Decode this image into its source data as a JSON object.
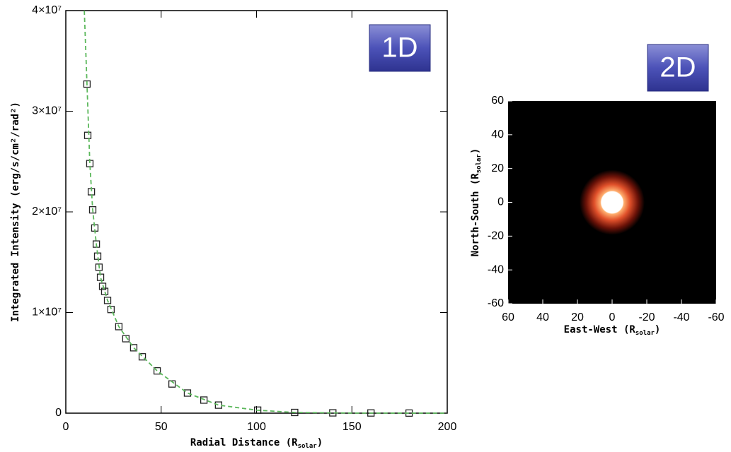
{
  "chart_data": [
    {
      "type": "scatter",
      "xlabel": [
        "Radial Distance (R",
        "solar",
        ")"
      ],
      "ylabel": "Integrated Intensity (erg/s/cm²/rad²)",
      "annotation": "1D",
      "xlim": [
        0,
        200
      ],
      "xticks": [
        0,
        50,
        100,
        150,
        200
      ],
      "ylim": [
        0,
        40000000
      ],
      "yticks": [
        0,
        {
          "value": 10000000,
          "label": "1×10⁷"
        },
        {
          "value": 20000000,
          "label": "2×10⁷"
        },
        {
          "value": 30000000,
          "label": "3×10⁷"
        },
        {
          "value": 40000000,
          "label": "4×10⁷"
        }
      ],
      "series": [
        {
          "style": "markers",
          "color": "#222222",
          "x": [
            11.1,
            11.5,
            12.6,
            13.4,
            14.1,
            15.2,
            16,
            16.7,
            17.4,
            18.2,
            19.3,
            20.4,
            21.9,
            23.7,
            27.8,
            31.5,
            35.6,
            40.1,
            47.9,
            55.7,
            63.8,
            72.4,
            80.1,
            100.6,
            120,
            140,
            160,
            180
          ],
          "values": [
            32700000,
            27600000,
            24800000,
            22000000,
            20200000,
            18400000,
            16800000,
            15600000,
            14500000,
            13500000,
            12600000,
            12100000,
            11200000,
            10300000,
            8600000,
            7400000,
            6500000,
            5600000,
            4200000,
            2900000,
            2000000,
            1300000,
            800000,
            300000,
            70000,
            30000,
            20000,
            10000
          ]
        },
        {
          "style": "dashed line",
          "color": "#5cb85c",
          "x": [
            9.7,
            11.1,
            12.6,
            14.1,
            16,
            18.2,
            21.9,
            27.8,
            35.6,
            47.9,
            63.8,
            80.1,
            100,
            120,
            150,
            200
          ],
          "values": [
            40000000,
            32700000,
            24800000,
            20200000,
            16800000,
            13500000,
            11200000,
            8600000,
            6500000,
            4200000,
            2000000,
            800000,
            300000,
            70000,
            10000,
            0
          ]
        }
      ]
    },
    {
      "type": "image",
      "xlabel": [
        "East-West (R",
        "solar",
        ")"
      ],
      "ylabel": [
        "North-South (R",
        "solar",
        ")"
      ],
      "annotation": "2D",
      "xlim": [
        60,
        -60
      ],
      "xticks": [
        60,
        40,
        20,
        0,
        -20,
        -40,
        -60
      ],
      "ylim": [
        -60,
        60
      ],
      "yticks": [
        -60,
        -40,
        -20,
        0,
        20,
        40,
        60
      ],
      "source_center": [
        0,
        0
      ]
    }
  ]
}
